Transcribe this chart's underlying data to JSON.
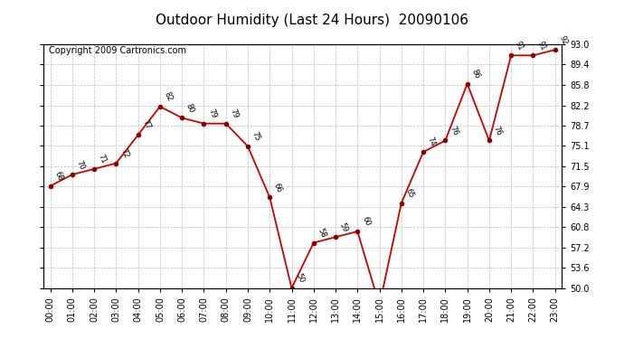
{
  "title": "Outdoor Humidity (Last 24 Hours)  20090106",
  "copyright": "Copyright 2009 Cartronics.com",
  "x_labels": [
    "00:00",
    "01:00",
    "02:00",
    "03:00",
    "04:00",
    "05:00",
    "06:00",
    "07:00",
    "08:00",
    "09:00",
    "10:00",
    "11:00",
    "12:00",
    "13:00",
    "14:00",
    "15:00",
    "16:00",
    "17:00",
    "18:00",
    "19:00",
    "20:00",
    "21:00",
    "22:00",
    "23:00"
  ],
  "hours": [
    0,
    1,
    2,
    3,
    4,
    5,
    6,
    7,
    8,
    9,
    10,
    11,
    12,
    13,
    14,
    15,
    16,
    17,
    18,
    19,
    20,
    21,
    22,
    23
  ],
  "values": [
    68,
    70,
    71,
    72,
    77,
    82,
    80,
    79,
    79,
    75,
    66,
    50,
    58,
    59,
    60,
    47,
    65,
    74,
    76,
    86,
    76,
    91,
    91,
    92
  ],
  "yticks": [
    50.0,
    53.6,
    57.2,
    60.8,
    64.3,
    67.9,
    71.5,
    75.1,
    78.7,
    82.2,
    85.8,
    89.4,
    93.0
  ],
  "ylim": [
    50.0,
    93.0
  ],
  "xlim": [
    -0.3,
    23.3
  ],
  "line_color": "#cc0000",
  "marker_color": "#880000",
  "bg_color": "#ffffff",
  "grid_color": "#bbbbbb",
  "title_fontsize": 11,
  "label_fontsize": 6,
  "tick_fontsize": 7,
  "copyright_fontsize": 7
}
